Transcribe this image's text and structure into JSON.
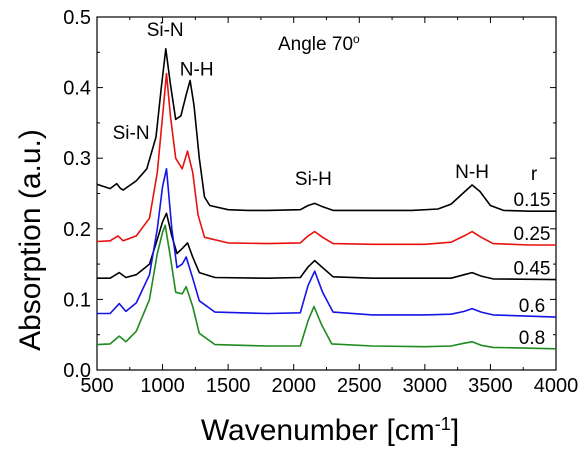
{
  "chart_data": {
    "type": "line",
    "xlabel": "Wavenumber [cm",
    "xlabel_sup": "-1",
    "xlabel_end": "]",
    "ylabel": "Absorption (a.u.)",
    "xlim": [
      500,
      4000
    ],
    "ylim": [
      0.0,
      0.5
    ],
    "x_ticks": [
      500,
      1000,
      1500,
      2000,
      2500,
      3000,
      3500,
      4000
    ],
    "y_ticks": [
      "0.0",
      "0.1",
      "0.2",
      "0.3",
      "0.4",
      "0.5"
    ],
    "grid": false,
    "legend_title": "r",
    "annotations": {
      "angle": "Angle 70",
      "angle_sup": "o",
      "labels": [
        {
          "text": "Si-N",
          "x": 760,
          "y": 0.327
        },
        {
          "text": "Si-N",
          "x": 1020,
          "y": 0.473
        },
        {
          "text": "N-H",
          "x": 1260,
          "y": 0.417
        },
        {
          "text": "Si-H",
          "x": 2150,
          "y": 0.262
        },
        {
          "text": "N-H",
          "x": 3360,
          "y": 0.272
        }
      ]
    },
    "series": [
      {
        "name": "0.15",
        "color": "#000000",
        "baseline": 0.225,
        "points": [
          [
            500,
            0.263
          ],
          [
            600,
            0.257
          ],
          [
            650,
            0.264
          ],
          [
            680,
            0.257
          ],
          [
            700,
            0.255
          ],
          [
            800,
            0.268
          ],
          [
            880,
            0.285
          ],
          [
            950,
            0.33
          ],
          [
            990,
            0.4
          ],
          [
            1025,
            0.455
          ],
          [
            1060,
            0.405
          ],
          [
            1100,
            0.355
          ],
          [
            1140,
            0.36
          ],
          [
            1180,
            0.39
          ],
          [
            1210,
            0.41
          ],
          [
            1240,
            0.375
          ],
          [
            1280,
            0.3
          ],
          [
            1320,
            0.245
          ],
          [
            1360,
            0.233
          ],
          [
            1500,
            0.227
          ],
          [
            1650,
            0.226
          ],
          [
            1800,
            0.226
          ],
          [
            2050,
            0.227
          ],
          [
            2110,
            0.233
          ],
          [
            2160,
            0.236
          ],
          [
            2210,
            0.232
          ],
          [
            2300,
            0.226
          ],
          [
            2600,
            0.226
          ],
          [
            2900,
            0.226
          ],
          [
            3100,
            0.228
          ],
          [
            3200,
            0.235
          ],
          [
            3300,
            0.252
          ],
          [
            3360,
            0.262
          ],
          [
            3420,
            0.253
          ],
          [
            3500,
            0.233
          ],
          [
            3600,
            0.226
          ],
          [
            3800,
            0.225
          ],
          [
            4000,
            0.225
          ]
        ]
      },
      {
        "name": "0.25",
        "color": "#e8120d",
        "baseline": 0.177,
        "points": [
          [
            500,
            0.182
          ],
          [
            600,
            0.183
          ],
          [
            660,
            0.19
          ],
          [
            700,
            0.183
          ],
          [
            800,
            0.19
          ],
          [
            900,
            0.215
          ],
          [
            960,
            0.28
          ],
          [
            1000,
            0.36
          ],
          [
            1030,
            0.42
          ],
          [
            1060,
            0.36
          ],
          [
            1100,
            0.3
          ],
          [
            1150,
            0.285
          ],
          [
            1190,
            0.31
          ],
          [
            1230,
            0.28
          ],
          [
            1270,
            0.22
          ],
          [
            1320,
            0.188
          ],
          [
            1500,
            0.18
          ],
          [
            1800,
            0.179
          ],
          [
            2050,
            0.18
          ],
          [
            2110,
            0.19
          ],
          [
            2160,
            0.196
          ],
          [
            2220,
            0.188
          ],
          [
            2300,
            0.179
          ],
          [
            2600,
            0.178
          ],
          [
            3000,
            0.178
          ],
          [
            3200,
            0.181
          ],
          [
            3300,
            0.19
          ],
          [
            3360,
            0.196
          ],
          [
            3430,
            0.188
          ],
          [
            3520,
            0.179
          ],
          [
            3800,
            0.177
          ],
          [
            4000,
            0.177
          ]
        ]
      },
      {
        "name": "0.45",
        "color": "#000000",
        "baseline": 0.128,
        "points": [
          [
            500,
            0.13
          ],
          [
            600,
            0.13
          ],
          [
            670,
            0.138
          ],
          [
            720,
            0.131
          ],
          [
            800,
            0.135
          ],
          [
            900,
            0.15
          ],
          [
            960,
            0.185
          ],
          [
            1000,
            0.21
          ],
          [
            1030,
            0.222
          ],
          [
            1070,
            0.19
          ],
          [
            1110,
            0.165
          ],
          [
            1150,
            0.172
          ],
          [
            1190,
            0.18
          ],
          [
            1230,
            0.16
          ],
          [
            1280,
            0.138
          ],
          [
            1400,
            0.131
          ],
          [
            1800,
            0.13
          ],
          [
            2050,
            0.131
          ],
          [
            2110,
            0.146
          ],
          [
            2160,
            0.155
          ],
          [
            2220,
            0.145
          ],
          [
            2300,
            0.132
          ],
          [
            2600,
            0.13
          ],
          [
            3000,
            0.13
          ],
          [
            3200,
            0.13
          ],
          [
            3300,
            0.135
          ],
          [
            3360,
            0.138
          ],
          [
            3430,
            0.133
          ],
          [
            3520,
            0.129
          ],
          [
            4000,
            0.128
          ]
        ]
      },
      {
        "name": "0.6",
        "color": "#1414e6",
        "baseline": 0.075,
        "points": [
          [
            500,
            0.08
          ],
          [
            600,
            0.08
          ],
          [
            670,
            0.094
          ],
          [
            720,
            0.083
          ],
          [
            800,
            0.095
          ],
          [
            900,
            0.135
          ],
          [
            960,
            0.2
          ],
          [
            1000,
            0.26
          ],
          [
            1030,
            0.285
          ],
          [
            1070,
            0.2
          ],
          [
            1110,
            0.145
          ],
          [
            1150,
            0.15
          ],
          [
            1180,
            0.16
          ],
          [
            1230,
            0.13
          ],
          [
            1280,
            0.098
          ],
          [
            1400,
            0.082
          ],
          [
            1800,
            0.08
          ],
          [
            2050,
            0.081
          ],
          [
            2110,
            0.12
          ],
          [
            2160,
            0.14
          ],
          [
            2220,
            0.11
          ],
          [
            2300,
            0.082
          ],
          [
            2600,
            0.078
          ],
          [
            3000,
            0.078
          ],
          [
            3200,
            0.079
          ],
          [
            3300,
            0.083
          ],
          [
            3360,
            0.087
          ],
          [
            3430,
            0.082
          ],
          [
            3520,
            0.078
          ],
          [
            4000,
            0.075
          ]
        ]
      },
      {
        "name": "0.8",
        "color": "#1f8a1f",
        "baseline": 0.03,
        "points": [
          [
            500,
            0.036
          ],
          [
            600,
            0.037
          ],
          [
            670,
            0.048
          ],
          [
            720,
            0.04
          ],
          [
            800,
            0.055
          ],
          [
            900,
            0.1
          ],
          [
            960,
            0.165
          ],
          [
            1000,
            0.195
          ],
          [
            1020,
            0.205
          ],
          [
            1060,
            0.16
          ],
          [
            1100,
            0.11
          ],
          [
            1150,
            0.108
          ],
          [
            1180,
            0.118
          ],
          [
            1230,
            0.09
          ],
          [
            1280,
            0.052
          ],
          [
            1400,
            0.036
          ],
          [
            1800,
            0.034
          ],
          [
            2050,
            0.034
          ],
          [
            2110,
            0.07
          ],
          [
            2155,
            0.09
          ],
          [
            2210,
            0.065
          ],
          [
            2290,
            0.037
          ],
          [
            2600,
            0.034
          ],
          [
            3000,
            0.033
          ],
          [
            3200,
            0.034
          ],
          [
            3300,
            0.038
          ],
          [
            3360,
            0.04
          ],
          [
            3430,
            0.035
          ],
          [
            3520,
            0.032
          ],
          [
            4000,
            0.03
          ]
        ]
      }
    ]
  }
}
